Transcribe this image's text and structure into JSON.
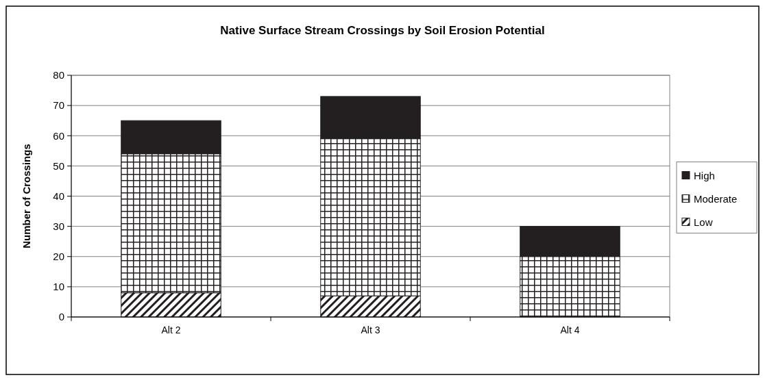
{
  "chart_data": {
    "type": "bar",
    "title": "Native Surface Stream Crossings  by Soil Erosion Potential",
    "ylabel": "Number of Crossings",
    "categories": [
      "Alt 2",
      "Alt 3",
      "Alt 4"
    ],
    "stacked": true,
    "series": [
      {
        "name": "Low",
        "color": "#231f20",
        "values": [
          8,
          7,
          0
        ]
      },
      {
        "name": "Moderate",
        "color": "#231f20",
        "values": [
          46,
          52,
          20
        ]
      },
      {
        "name": "High",
        "color": "#231f20",
        "values": [
          11,
          14,
          10
        ]
      }
    ],
    "ylim": [
      0,
      80
    ],
    "yticks": [
      0,
      10,
      20,
      30,
      40,
      50,
      60,
      70,
      80
    ],
    "grid": "y",
    "legend": "right"
  }
}
